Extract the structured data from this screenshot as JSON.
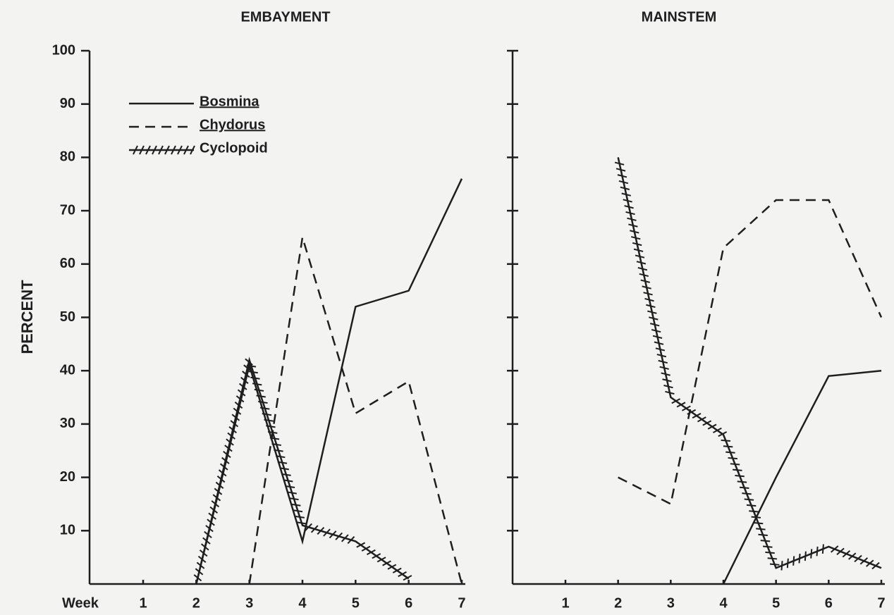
{
  "chart_data": [
    {
      "type": "line",
      "title": "EMBAYMENT",
      "ylabel": "PERCENT",
      "xlabel": "Week",
      "categories": [
        "1",
        "2",
        "3",
        "4",
        "5",
        "6",
        "7"
      ],
      "ylim": [
        0,
        100
      ],
      "yticks": [
        10,
        20,
        30,
        40,
        50,
        60,
        70,
        80,
        90,
        100
      ],
      "ytick_labels": true,
      "legend": true,
      "series": [
        {
          "name": "Bosmina",
          "color": "#1e1e1e",
          "style": "solid",
          "values": [
            null,
            0,
            41,
            8,
            52,
            55,
            76
          ]
        },
        {
          "name": "Chydorus",
          "color": "#1e1e1e",
          "style": "dashed",
          "values": [
            null,
            null,
            0,
            65,
            32,
            38,
            0
          ]
        },
        {
          "name": "Cyclopoid",
          "color": "#1e1e1e",
          "style": "hatched",
          "values": [
            null,
            0,
            42,
            11,
            8,
            1,
            null
          ]
        }
      ]
    },
    {
      "type": "line",
      "title": "MAINSTEM",
      "categories": [
        "1",
        "2",
        "3",
        "4",
        "5",
        "6",
        "7"
      ],
      "ylim": [
        0,
        100
      ],
      "yticks": [
        10,
        20,
        30,
        40,
        50,
        60,
        70,
        80,
        90,
        100
      ],
      "ytick_labels": false,
      "legend": false,
      "series": [
        {
          "color": "#1e1e1e",
          "style": "solid",
          "values": [
            null,
            null,
            null,
            0,
            20,
            39,
            40
          ]
        },
        {
          "color": "#1e1e1e",
          "style": "dashed",
          "values": [
            null,
            20,
            15,
            63,
            72,
            72,
            50
          ]
        },
        {
          "color": "#1e1e1e",
          "style": "hatched",
          "values": [
            null,
            80,
            35,
            28,
            3,
            7,
            3
          ]
        }
      ]
    }
  ]
}
